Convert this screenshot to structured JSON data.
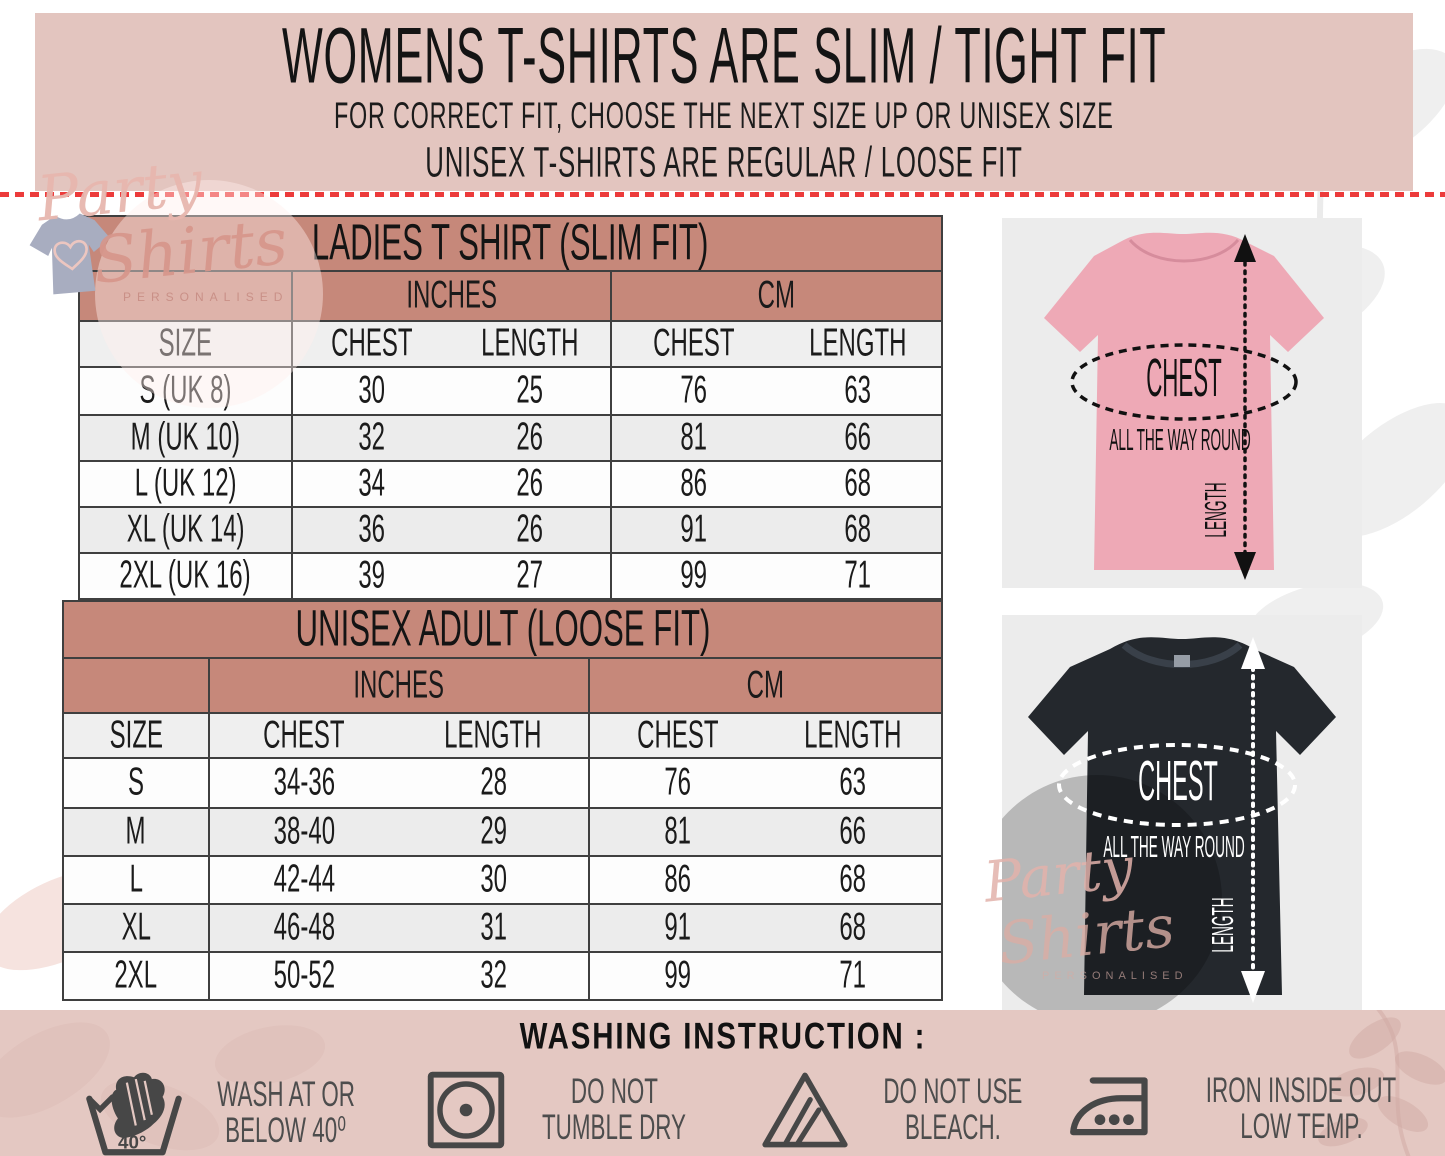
{
  "banner": {
    "title": "WOMENS T-SHIRTS ARE SLIM / TIGHT FIT",
    "line1": "FOR CORRECT FIT, CHOOSE THE NEXT SIZE UP OR UNISEX SIZE",
    "line2": "UNISEX T-SHIRTS ARE REGULAR / LOOSE FIT"
  },
  "brand_watermark": {
    "word1": "Party",
    "word2": "Shirts",
    "tagline": "PERSONALISED"
  },
  "ladies_table": {
    "title": "LADIES T SHIRT (SLIM FIT)",
    "unit_inches": "INCHES",
    "unit_cm": "CM",
    "col_headers": [
      "SIZE",
      "CHEST",
      "LENGTH",
      "CHEST",
      "LENGTH"
    ],
    "rows": [
      [
        "S (UK 8)",
        "30",
        "25",
        "76",
        "63"
      ],
      [
        "M (UK 10)",
        "32",
        "26",
        "81",
        "66"
      ],
      [
        "L (UK 12)",
        "34",
        "26",
        "86",
        "68"
      ],
      [
        "XL (UK 14)",
        "36",
        "26",
        "91",
        "68"
      ],
      [
        "2XL (UK 16)",
        "39",
        "27",
        "99",
        "71"
      ]
    ]
  },
  "unisex_table": {
    "title": "UNISEX ADULT (LOOSE FIT)",
    "unit_inches": "INCHES",
    "unit_cm": "CM",
    "col_headers": [
      "SIZE",
      "CHEST",
      "LENGTH",
      "CHEST",
      "LENGTH"
    ],
    "rows": [
      [
        "S",
        "34-36",
        "28",
        "76",
        "63"
      ],
      [
        "M",
        "38-40",
        "29",
        "81",
        "66"
      ],
      [
        "L",
        "42-44",
        "30",
        "86",
        "68"
      ],
      [
        "XL",
        "46-48",
        "31",
        "91",
        "68"
      ],
      [
        "2XL",
        "50-52",
        "32",
        "99",
        "71"
      ]
    ]
  },
  "shirt_diagram_labels": {
    "chest": "CHEST",
    "around": "ALL THE WAY ROUND",
    "length": "LENGTH"
  },
  "washing": {
    "title": "WASHING INSTRUCTION :",
    "items": [
      {
        "icon": "handwash-40-icon",
        "line1": "WASH AT OR",
        "line2": "BELOW 40⁰",
        "badge": "40°"
      },
      {
        "icon": "no-tumble-dry-icon",
        "line1": "DO  NOT",
        "line2": "TUMBLE DRY"
      },
      {
        "icon": "no-bleach-icon",
        "line1": "DO NOT USE",
        "line2": "BLEACH."
      },
      {
        "icon": "iron-icon",
        "line1": "IRON INSIDE OUT",
        "line2": "LOW TEMP."
      }
    ]
  },
  "colors": {
    "banner_pink": "#e3c5bf",
    "table_header_rose": "#c6887a",
    "row_alt_gray": "#ececec",
    "dashed_line_red": "#ec3b3b",
    "panel_gray": "#ececec",
    "shirt_pink": "#eea9b6",
    "shirt_black": "#24282d",
    "wash_strip_pink": "#e4c8c2",
    "icon_gray": "#474747"
  }
}
